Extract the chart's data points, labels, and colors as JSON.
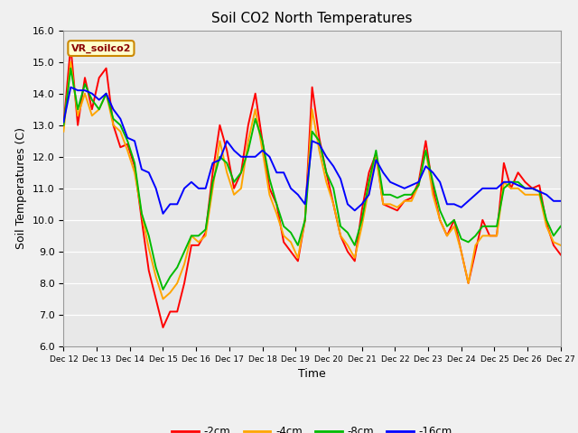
{
  "title": "Soil CO2 North Temperatures",
  "xlabel": "Time",
  "ylabel": "Soil Temperatures (C)",
  "annotation": "VR_soilco2",
  "ylim": [
    6.0,
    16.0
  ],
  "yticks": [
    6.0,
    7.0,
    8.0,
    9.0,
    10.0,
    11.0,
    12.0,
    13.0,
    14.0,
    15.0,
    16.0
  ],
  "xtick_labels": [
    "Dec 12",
    "Dec 13",
    "Dec 14",
    "Dec 15",
    "Dec 16",
    "Dec 17",
    "Dec 18",
    "Dec 19",
    "Dec 20",
    "Dec 21",
    "Dec 22",
    "Dec 23",
    "Dec 24",
    "Dec 25",
    "Dec 26",
    "Dec 27"
  ],
  "legend_labels": [
    "-2cm",
    "-4cm",
    "-8cm",
    "-16cm"
  ],
  "colors": [
    "#ff0000",
    "#ffa500",
    "#00bb00",
    "#0000ff"
  ],
  "plot_bg": "#e8e8e8",
  "fig_bg": "#f0f0f0",
  "line_width": 1.4,
  "series": {
    "m2cm": [
      13.0,
      15.5,
      13.0,
      14.5,
      13.5,
      14.5,
      14.8,
      13.0,
      12.3,
      12.4,
      11.7,
      10.0,
      8.4,
      7.5,
      6.6,
      7.1,
      7.1,
      8.0,
      9.2,
      9.2,
      9.6,
      11.5,
      13.0,
      12.2,
      11.0,
      11.5,
      13.0,
      14.0,
      12.5,
      11.0,
      10.5,
      9.3,
      9.0,
      8.7,
      10.0,
      14.2,
      12.6,
      11.5,
      10.5,
      9.5,
      9.0,
      8.7,
      10.3,
      11.5,
      12.1,
      10.5,
      10.4,
      10.3,
      10.6,
      10.7,
      11.2,
      12.5,
      11.0,
      10.0,
      9.5,
      10.0,
      9.0,
      8.0,
      9.0,
      10.0,
      9.5,
      9.5,
      11.8,
      11.0,
      11.5,
      11.2,
      11.0,
      11.1,
      9.9,
      9.2,
      8.9
    ],
    "m4cm": [
      12.8,
      15.0,
      13.3,
      14.0,
      13.3,
      13.5,
      14.0,
      13.0,
      12.8,
      12.2,
      11.5,
      10.2,
      9.1,
      8.2,
      7.5,
      7.7,
      8.0,
      8.6,
      9.5,
      9.3,
      9.5,
      11.0,
      12.5,
      11.5,
      10.8,
      11.0,
      12.5,
      13.5,
      12.2,
      10.8,
      10.2,
      9.5,
      9.3,
      8.8,
      10.0,
      13.5,
      12.2,
      11.2,
      10.5,
      9.5,
      9.2,
      8.8,
      9.8,
      11.0,
      12.0,
      10.5,
      10.5,
      10.4,
      10.6,
      10.6,
      11.1,
      12.2,
      10.8,
      10.0,
      9.5,
      9.8,
      9.0,
      8.0,
      9.2,
      9.5,
      9.5,
      9.5,
      11.2,
      11.0,
      11.0,
      10.8,
      10.8,
      10.8,
      9.8,
      9.3,
      9.2
    ],
    "m8cm": [
      13.0,
      14.8,
      13.5,
      14.3,
      13.8,
      13.5,
      14.0,
      13.2,
      13.0,
      12.5,
      11.8,
      10.2,
      9.5,
      8.5,
      7.8,
      8.2,
      8.5,
      9.0,
      9.5,
      9.5,
      9.7,
      11.2,
      12.0,
      11.8,
      11.2,
      11.5,
      12.2,
      13.2,
      12.5,
      11.3,
      10.5,
      9.8,
      9.6,
      9.2,
      10.0,
      12.8,
      12.5,
      11.5,
      11.0,
      9.8,
      9.6,
      9.2,
      10.0,
      11.2,
      12.2,
      10.8,
      10.8,
      10.7,
      10.8,
      10.8,
      11.1,
      12.2,
      11.2,
      10.3,
      9.8,
      10.0,
      9.4,
      9.3,
      9.5,
      9.8,
      9.8,
      9.8,
      11.0,
      11.2,
      11.2,
      11.0,
      11.0,
      10.9,
      10.0,
      9.5,
      9.8
    ],
    "m16cm": [
      13.1,
      14.2,
      14.1,
      14.1,
      14.0,
      13.8,
      14.0,
      13.5,
      13.2,
      12.6,
      12.5,
      11.6,
      11.5,
      11.0,
      10.2,
      10.5,
      10.5,
      11.0,
      11.2,
      11.0,
      11.0,
      11.8,
      11.9,
      12.5,
      12.2,
      12.0,
      12.0,
      12.0,
      12.2,
      12.0,
      11.5,
      11.5,
      11.0,
      10.8,
      10.5,
      12.5,
      12.4,
      12.0,
      11.7,
      11.3,
      10.5,
      10.3,
      10.5,
      10.8,
      11.9,
      11.5,
      11.2,
      11.1,
      11.0,
      11.1,
      11.2,
      11.7,
      11.5,
      11.2,
      10.5,
      10.5,
      10.4,
      10.6,
      10.8,
      11.0,
      11.0,
      11.0,
      11.2,
      11.2,
      11.1,
      11.0,
      11.0,
      10.9,
      10.8,
      10.6,
      10.6
    ]
  }
}
